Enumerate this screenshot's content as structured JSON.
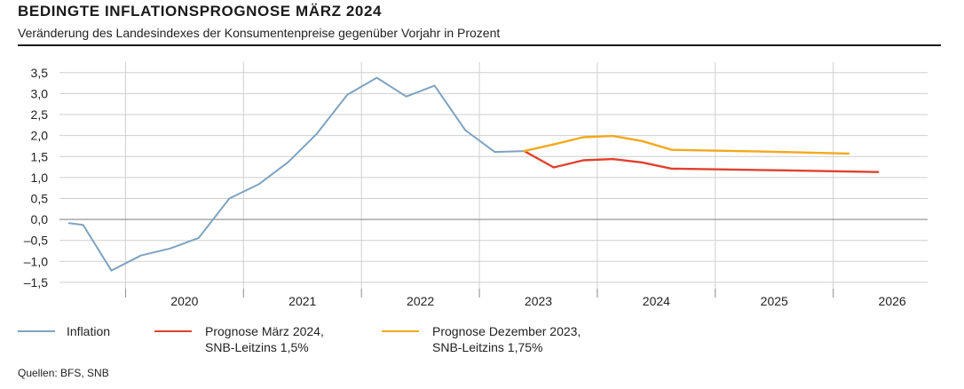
{
  "header": {
    "title": "BEDINGTE INFLATIONSPROGNOSE MÄRZ 2024",
    "subtitle": "Veränderung des Landesindexes der Konsumentenpreise gegenüber Vorjahr in Prozent"
  },
  "legend": {
    "inflation": "Inflation",
    "march_line1": "Prognose März 2024,",
    "march_line2": "SNB-Leitzins 1,5%",
    "dec_line1": "Prognose Dezember 2023,",
    "dec_line2": "SNB-Leitzins 1,75%"
  },
  "footer": {
    "source": "Quellen: BFS, SNB"
  },
  "colors": {
    "inflation": "#7fa3bf",
    "march": "#e0412e",
    "december": "#f2a91e",
    "grid": "#cfcfcf",
    "axis": "#8a8a8a"
  },
  "chart_data": {
    "type": "line",
    "title": "BEDINGTE INFLATIONSPROGNOSE MÄRZ 2024",
    "subtitle": "Veränderung des Landesindexes der Konsumentenpreise gegenüber Vorjahr in Prozent",
    "xlabel": "",
    "ylabel": "",
    "xlim": [
      2019.5,
      2026.8
    ],
    "ylim": [
      -1.65,
      3.75
    ],
    "yticks": [
      -1.5,
      -1.0,
      -0.5,
      0.0,
      0.5,
      1.0,
      1.5,
      2.0,
      2.5,
      3.0,
      3.5
    ],
    "ytick_labels": [
      "–1,5",
      "–1,0",
      "–0,5",
      "0,0",
      "0,5",
      "1,0",
      "1,5",
      "2,0",
      "2,5",
      "3,0",
      "3,5"
    ],
    "xtick_labels": [
      {
        "label": "2020",
        "x": 2020.5
      },
      {
        "label": "2021",
        "x": 2021.5
      },
      {
        "label": "2022",
        "x": 2022.5
      },
      {
        "label": "2023",
        "x": 2023.5
      },
      {
        "label": "2024",
        "x": 2024.5
      },
      {
        "label": "2025",
        "x": 2025.5
      },
      {
        "label": "2026",
        "x": 2026.5
      }
    ],
    "year_boundaries": [
      2020,
      2021,
      2022,
      2023,
      2024,
      2025,
      2026
    ],
    "grid": true,
    "legend_position": "bottom",
    "series": [
      {
        "name": "Inflation",
        "color": "#7fa3bf",
        "points": [
          [
            2019.52,
            -0.09
          ],
          [
            2019.64,
            -0.13
          ],
          [
            2019.88,
            -1.22
          ],
          [
            2020.13,
            -0.86
          ],
          [
            2020.38,
            -0.69
          ],
          [
            2020.62,
            -0.44
          ],
          [
            2020.88,
            0.5
          ],
          [
            2021.13,
            0.84
          ],
          [
            2021.38,
            1.37
          ],
          [
            2021.62,
            2.04
          ],
          [
            2021.88,
            2.97
          ],
          [
            2022.13,
            3.38
          ],
          [
            2022.38,
            2.93
          ],
          [
            2022.62,
            3.19
          ],
          [
            2022.88,
            2.13
          ],
          [
            2023.13,
            1.61
          ],
          [
            2023.38,
            1.63
          ]
        ]
      },
      {
        "name": "Prognose März 2024, SNB-Leitzins 1,5%",
        "color": "#e0412e",
        "points": [
          [
            2023.38,
            1.63
          ],
          [
            2023.63,
            1.24
          ],
          [
            2023.88,
            1.41
          ],
          [
            2024.13,
            1.44
          ],
          [
            2024.38,
            1.36
          ],
          [
            2024.63,
            1.21
          ],
          [
            2025.38,
            1.18
          ],
          [
            2026.38,
            1.13
          ]
        ]
      },
      {
        "name": "Prognose Dezember 2023, SNB-Leitzins 1,75%",
        "color": "#f2a91e",
        "points": [
          [
            2023.38,
            1.63
          ],
          [
            2023.63,
            1.79
          ],
          [
            2023.88,
            1.96
          ],
          [
            2024.13,
            1.99
          ],
          [
            2024.38,
            1.87
          ],
          [
            2024.63,
            1.66
          ],
          [
            2025.38,
            1.62
          ],
          [
            2026.13,
            1.57
          ]
        ]
      }
    ]
  }
}
